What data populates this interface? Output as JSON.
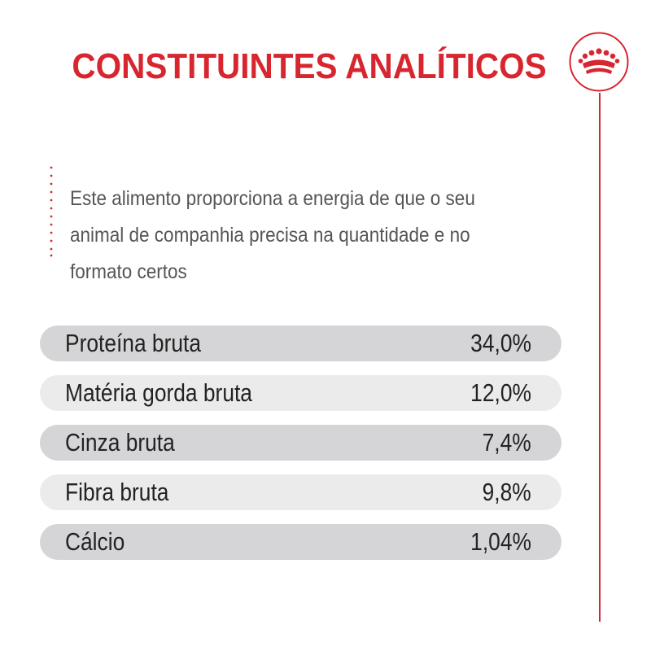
{
  "title": "CONSTITUINTES ANALÍTICOS",
  "intro": "Este alimento proporciona a energia de que o seu animal de companhia precisa na quantidade e no formato certos",
  "icons": {
    "brand": "crown-icon"
  },
  "colors": {
    "accent": "#d7262f",
    "row_dark": "#d5d5d7",
    "row_light": "#ebebec",
    "text": "#222222",
    "intro_text": "#555555"
  },
  "constituents": [
    {
      "label": "Proteína bruta",
      "value": "34,0%"
    },
    {
      "label": "Matéria gorda bruta",
      "value": "12,0%"
    },
    {
      "label": "Cinza bruta",
      "value": "7,4%"
    },
    {
      "label": "Fibra bruta",
      "value": "9,8%"
    },
    {
      "label": "Cálcio",
      "value": "1,04%"
    }
  ]
}
